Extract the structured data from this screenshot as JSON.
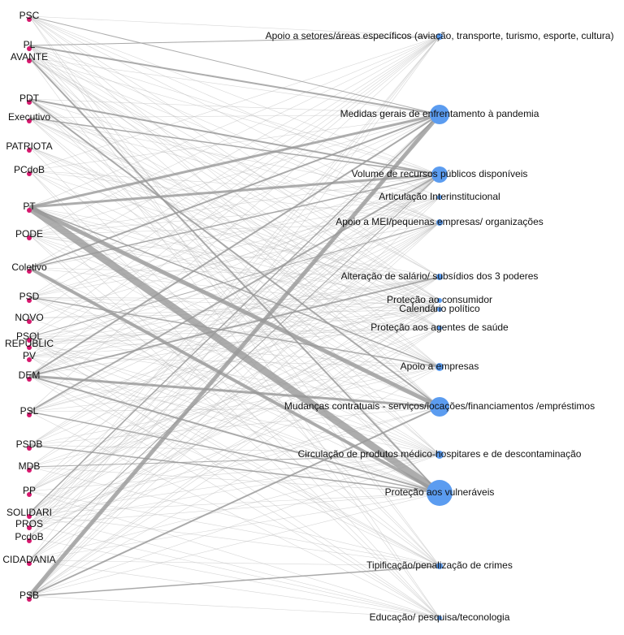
{
  "left_nodes": [
    {
      "label": "PSC"
    },
    {
      "label": "PL"
    },
    {
      "label": "AVANTE"
    },
    {
      "label": "PDT"
    },
    {
      "label": "Executivo"
    },
    {
      "label": "PATRIOTA"
    },
    {
      "label": "PCdoB"
    },
    {
      "label": "PT"
    },
    {
      "label": "PODE"
    },
    {
      "label": "Coletivo"
    },
    {
      "label": "PSD"
    },
    {
      "label": "NOVO"
    },
    {
      "label": "PSOL"
    },
    {
      "label": "REPUBLIC"
    },
    {
      "label": "PV"
    },
    {
      "label": "DEM"
    },
    {
      "label": "PSL"
    },
    {
      "label": "PSDB"
    },
    {
      "label": "MDB"
    },
    {
      "label": "PP"
    },
    {
      "label": "SOLIDARI"
    },
    {
      "label": "PROS"
    },
    {
      "label": "PcdoB"
    },
    {
      "label": "CIDADANIA"
    },
    {
      "label": "PSB"
    }
  ],
  "right_nodes": [
    {
      "label": "Apoio a setores/áreas específicos (aviação, transporte, turismo, esporte, cultura)"
    },
    {
      "label": "Medidas gerais de enfrentamento à pandemia"
    },
    {
      "label": "Volume de recursos públicos disponíveis"
    },
    {
      "label": "Articulação Interinstitucional"
    },
    {
      "label": "Apoio a MEI/pequenas empresas/ organizações"
    },
    {
      "label": "Alteração de salário/ subsídios dos 3 poderes"
    },
    {
      "label": "Proteção ao consumidor"
    },
    {
      "label": "Calendário político"
    },
    {
      "label": "Proteção aos agentes de saúde"
    },
    {
      "label": "Apoio a empresas"
    },
    {
      "label": "Mudanças contratuais - serviços/locações/financiamentos /empréstimos"
    },
    {
      "label": "Circulação de produtos médico-hospitares e de descontaminação"
    },
    {
      "label": "Proteção aos vulneráveis"
    },
    {
      "label": "Tipificação/penalização de crimes"
    },
    {
      "label": "Educação/ pesquisa/teconologia"
    }
  ]
}
